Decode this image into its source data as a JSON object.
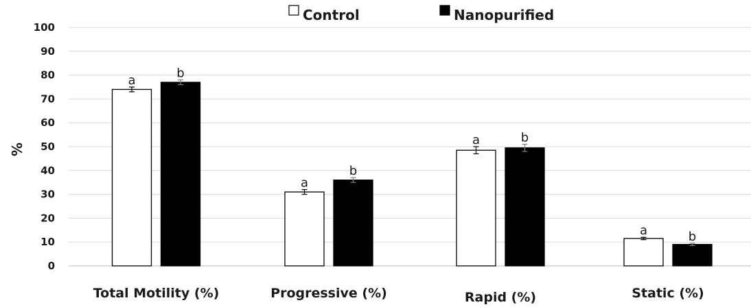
{
  "chart_data": {
    "type": "bar",
    "title": "",
    "xlabel": "",
    "ylabel": "%",
    "ylim": [
      0,
      100
    ],
    "yticks": [
      "0",
      "10",
      "20",
      "30",
      "40",
      "50",
      "60",
      "70",
      "80",
      "90",
      "100"
    ],
    "grid": true,
    "legend_position": "top",
    "categories": [
      "Total Motility (%)",
      "Progressive (%)",
      "Rapid (%)",
      "Static (%)"
    ],
    "series": [
      {
        "name": "Control",
        "fill": "#ffffff",
        "values": [
          74,
          31,
          48.5,
          11.5
        ],
        "errors": [
          1.0,
          1.0,
          1.5,
          0.5
        ],
        "letters": [
          "a",
          "a",
          "a",
          "a"
        ]
      },
      {
        "name": "Nanopurified",
        "fill": "#000000",
        "values": [
          77,
          36,
          49.5,
          9
        ],
        "errors": [
          1.0,
          1.0,
          1.5,
          0.5
        ],
        "letters": [
          "b",
          "b",
          "b",
          "b"
        ]
      }
    ]
  }
}
